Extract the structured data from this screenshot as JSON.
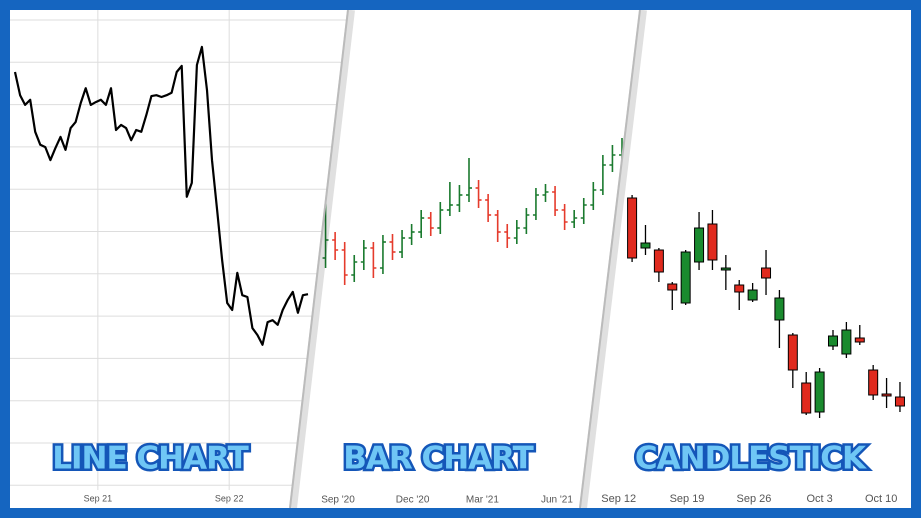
{
  "chart_data": [
    {
      "type": "line",
      "title": "LINE CHART",
      "color": "#000000",
      "grid": true,
      "values": [
        88.8,
        83.8,
        81.7,
        82.8,
        75.9,
        73.1,
        72.6,
        69.8,
        72.4,
        74.8,
        72.0,
        76.7,
        78.0,
        82.1,
        85.3,
        81.7,
        82.3,
        82.8,
        81.7,
        85.3,
        76.3,
        77.4,
        76.7,
        74.1,
        76.3,
        75.9,
        79.5,
        83.6,
        83.8,
        83.4,
        83.8,
        84.3,
        88.8,
        90.1,
        61.9,
        64.9,
        90.3,
        94.2,
        84.9,
        69.8,
        59.1,
        48.3,
        39.0,
        37.5,
        45.5,
        40.7,
        40.3,
        33.6,
        32.1,
        30.0,
        34.9,
        35.3,
        34.3,
        37.5,
        39.7,
        41.4,
        36.9,
        40.7,
        40.9
      ],
      "xlim": [
        0,
        58
      ],
      "ylim": [
        0,
        100
      ],
      "xticks": [
        {
          "value": 16.4,
          "label": "Sep 21"
        },
        {
          "value": 42.4,
          "label": "Sep 22"
        }
      ]
    },
    {
      "type": "ohlc",
      "title": "BAR CHART",
      "up_color": "#1a7a2e",
      "down_color": "#e53b2c",
      "open": [
        250,
        242,
        260,
        250,
        225,
        238,
        252,
        232,
        258,
        248,
        262,
        268,
        282,
        272,
        290,
        295,
        305,
        312,
        300,
        285,
        268,
        262,
        272,
        285,
        305,
        308,
        290,
        278,
        282,
        295,
        310,
        335,
        345
      ],
      "high": [
        260,
        317,
        268,
        258,
        245,
        260,
        258,
        265,
        266,
        270,
        276,
        290,
        288,
        298,
        318,
        315,
        342,
        320,
        306,
        290,
        276,
        280,
        292,
        312,
        316,
        314,
        296,
        290,
        302,
        318,
        345,
        355,
        362
      ],
      "low": [
        232,
        232,
        240,
        215,
        218,
        230,
        222,
        226,
        240,
        242,
        255,
        262,
        264,
        266,
        284,
        288,
        298,
        292,
        278,
        258,
        252,
        256,
        266,
        280,
        298,
        284,
        270,
        272,
        276,
        290,
        305,
        328,
        338
      ],
      "close": [
        242,
        260,
        250,
        225,
        238,
        252,
        232,
        258,
        248,
        262,
        268,
        282,
        272,
        290,
        295,
        305,
        312,
        300,
        285,
        268,
        262,
        272,
        285,
        305,
        308,
        290,
        278,
        282,
        295,
        310,
        335,
        345,
        350
      ],
      "xlim": [
        0,
        32
      ],
      "ylim": [
        0,
        480
      ],
      "xticks": [
        {
          "value": 2.3,
          "label": "Sep '20"
        },
        {
          "value": 10.1,
          "label": "Dec '20"
        },
        {
          "value": 17.4,
          "label": "Mar '21"
        },
        {
          "value": 25.2,
          "label": "Jun '21"
        }
      ]
    },
    {
      "type": "candlestick",
      "title": "CANDLESTICK",
      "up_color": "#1a8a2e",
      "down_color": "#e02a1e",
      "open": [
        302,
        252,
        250,
        216,
        197,
        238,
        276,
        230,
        215,
        200,
        232,
        180,
        165,
        117,
        88,
        154,
        146,
        162,
        130,
        106,
        103
      ],
      "high": [
        305,
        275,
        252,
        218,
        250,
        288,
        290,
        245,
        220,
        217,
        250,
        210,
        167,
        128,
        132,
        170,
        178,
        175,
        135,
        122,
        118
      ],
      "low": [
        238,
        245,
        218,
        190,
        195,
        230,
        230,
        210,
        190,
        198,
        205,
        152,
        112,
        85,
        82,
        150,
        142,
        155,
        100,
        92,
        88
      ],
      "close": [
        242,
        257,
        228,
        210,
        248,
        272,
        240,
        232,
        208,
        210,
        222,
        202,
        130,
        87,
        128,
        164,
        170,
        158,
        105,
        105,
        94
      ],
      "xlim": [
        -1.5,
        20.6
      ],
      "ylim": [
        0,
        480
      ],
      "xticks": [
        {
          "value": -1,
          "label": "Sep 12"
        },
        {
          "value": 4.1,
          "label": "Sep 19"
        },
        {
          "value": 9.1,
          "label": "Sep 26"
        },
        {
          "value": 14,
          "label": "Oct 3"
        },
        {
          "value": 18.6,
          "label": "Oct 10"
        }
      ]
    }
  ]
}
